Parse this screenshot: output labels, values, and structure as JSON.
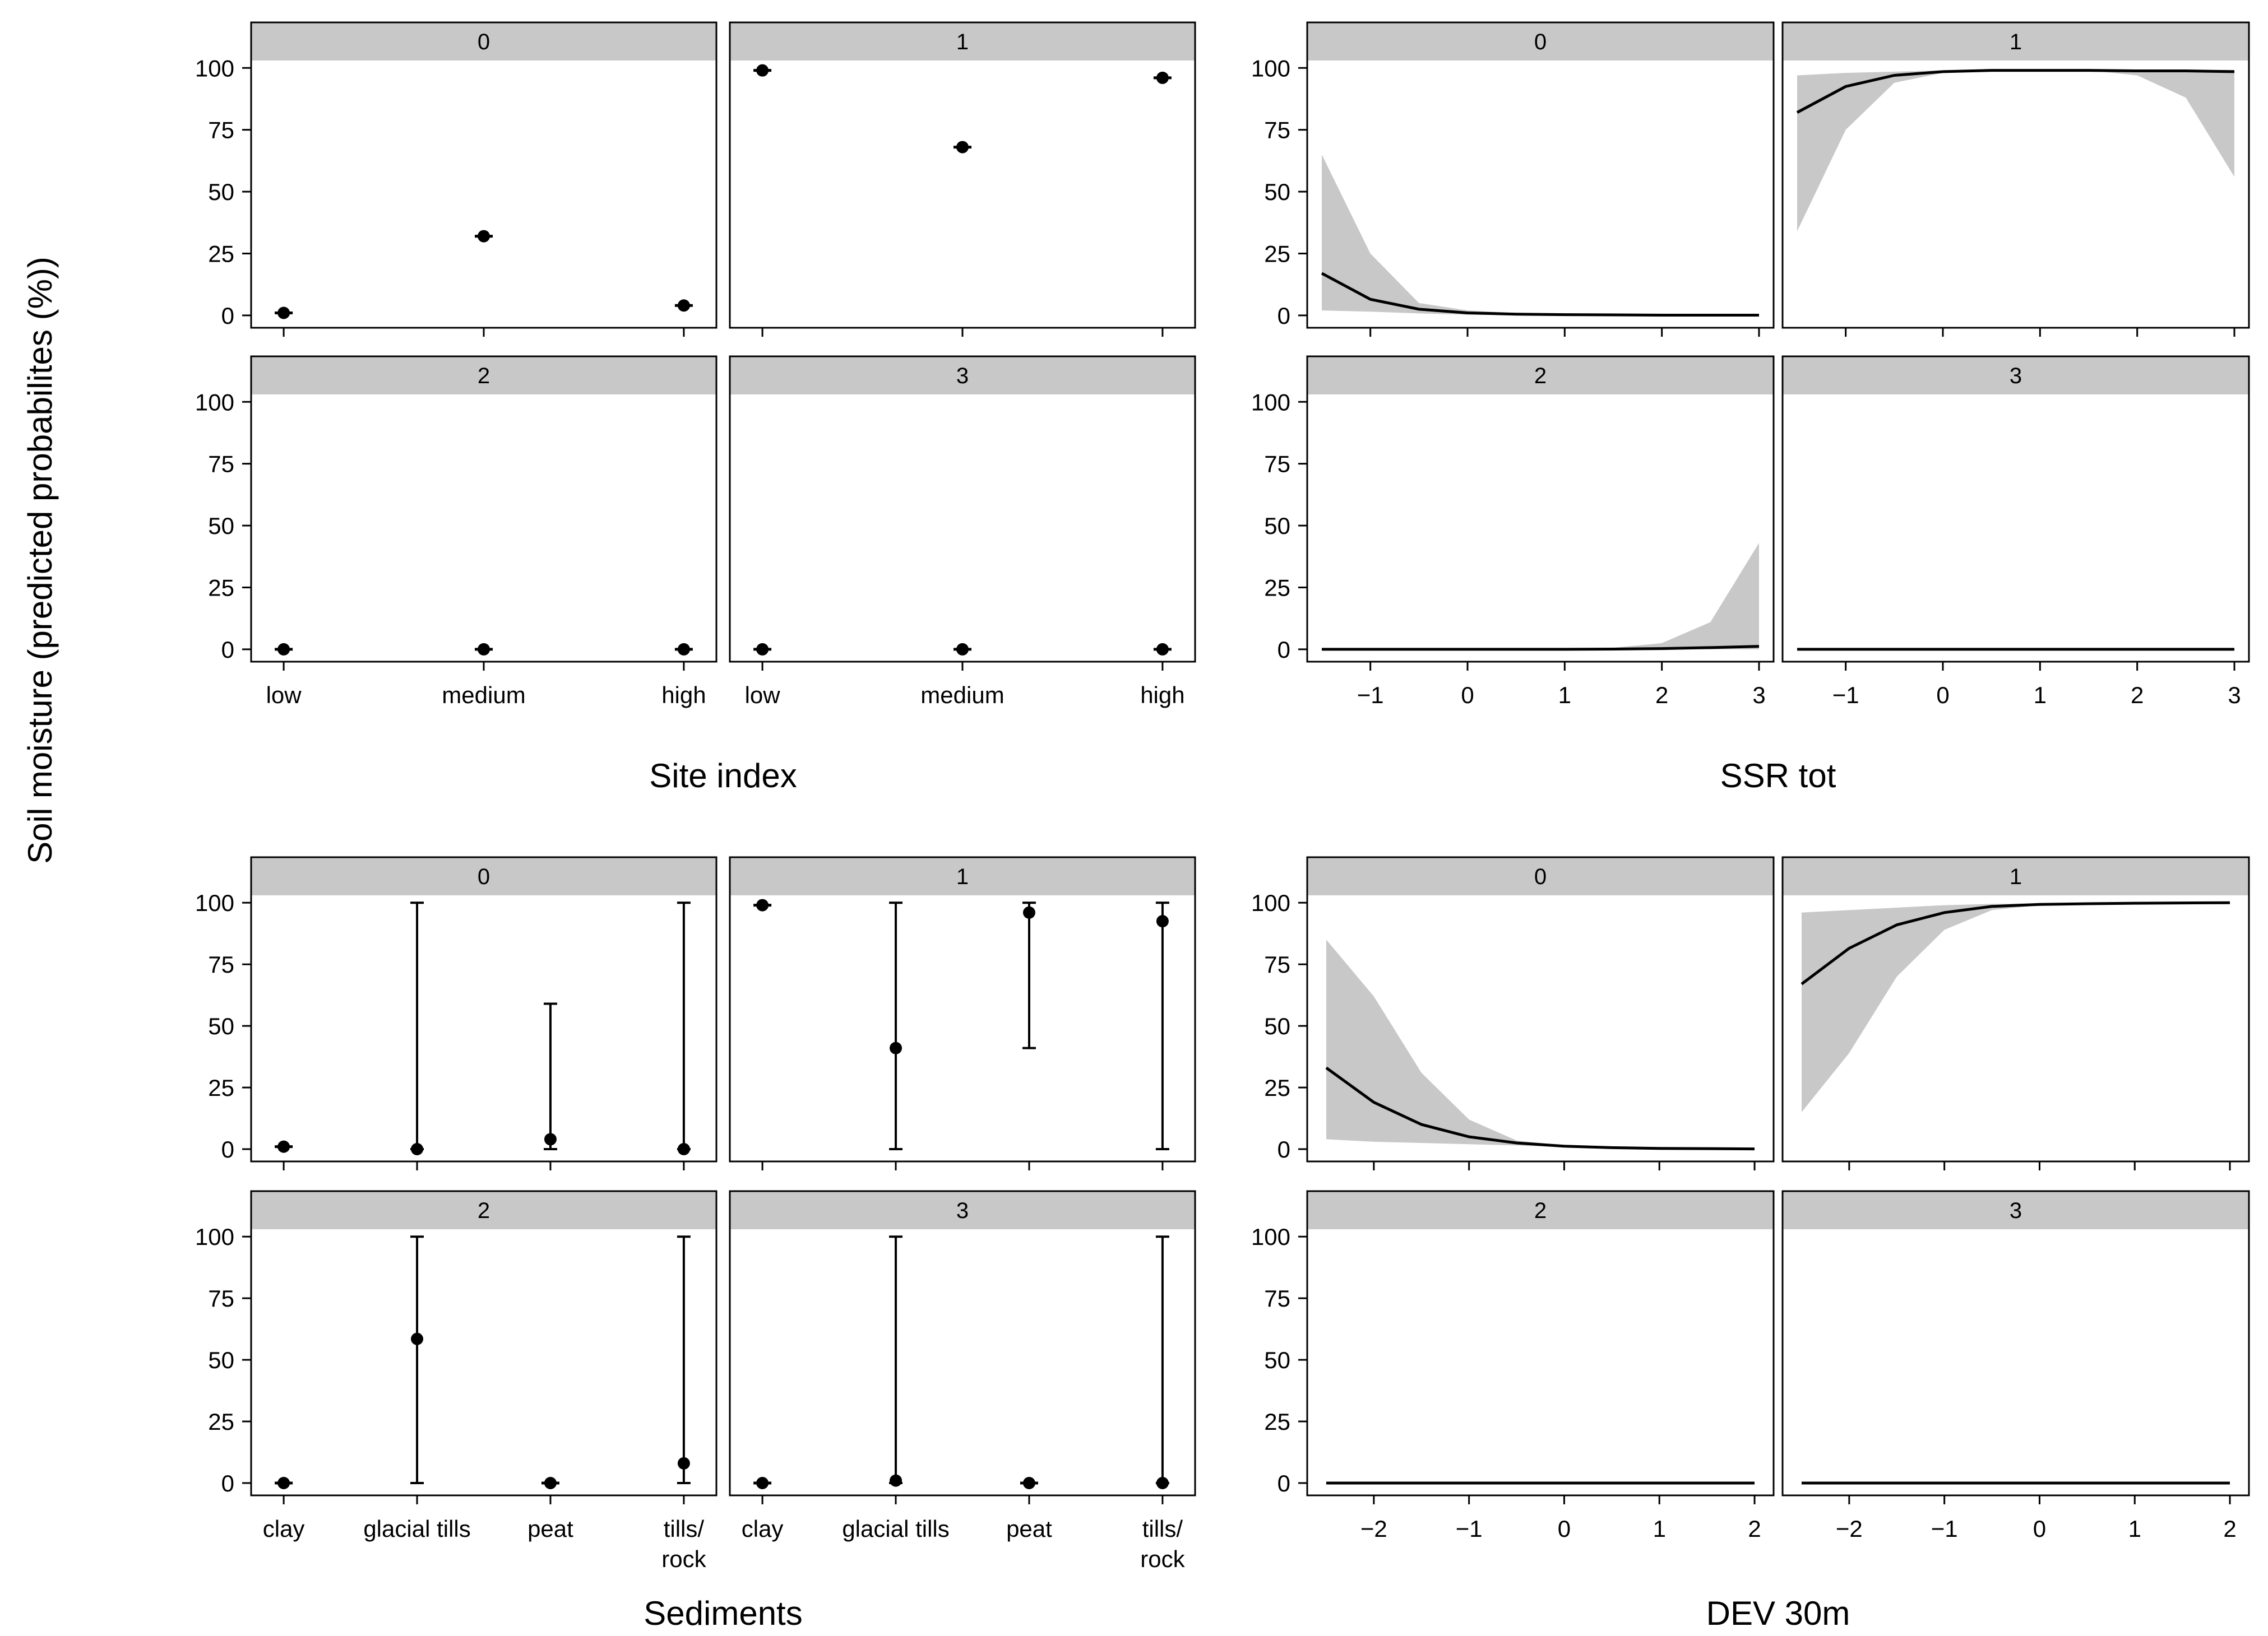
{
  "figure": {
    "ylabel": "Soil moisture (predicted probabilites (%))"
  },
  "colors": {
    "strip": "#c8c8c8",
    "band": "#c8c8c8",
    "line": "#000000",
    "frame": "#000000"
  },
  "chart_data": [
    {
      "id": "site-index",
      "type": "scatter",
      "title": "Site index",
      "xlabel": "Site index",
      "ylabel": "Soil moisture (predicted probabilites (%))",
      "categories": [
        "low",
        "medium",
        "high"
      ],
      "yticks": [
        0,
        25,
        50,
        75,
        100
      ],
      "ylim": [
        -5,
        103
      ],
      "panels": [
        {
          "label": "0",
          "points": [
            {
              "y": 1,
              "lo": 0,
              "hi": 2
            },
            {
              "y": 32,
              "lo": 31,
              "hi": 33
            },
            {
              "y": 4,
              "lo": 3,
              "hi": 5
            }
          ]
        },
        {
          "label": "1",
          "points": [
            {
              "y": 99,
              "lo": 98,
              "hi": 100
            },
            {
              "y": 68,
              "lo": 67,
              "hi": 69
            },
            {
              "y": 96,
              "lo": 95,
              "hi": 97
            }
          ]
        },
        {
          "label": "2",
          "points": [
            {
              "y": 0,
              "lo": 0,
              "hi": 0
            },
            {
              "y": 0,
              "lo": 0,
              "hi": 0
            },
            {
              "y": 0,
              "lo": 0,
              "hi": 0
            }
          ]
        },
        {
          "label": "3",
          "points": [
            {
              "y": 0,
              "lo": 0,
              "hi": 0
            },
            {
              "y": 0,
              "lo": 0,
              "hi": 0
            },
            {
              "y": 0,
              "lo": 0,
              "hi": 0
            }
          ]
        }
      ]
    },
    {
      "id": "ssr-tot",
      "type": "line",
      "title": "SSR tot",
      "xlabel": "SSR tot",
      "ylabel": "Soil moisture (predicted probabilites (%))",
      "x": [
        -1.5,
        -1,
        -0.5,
        0,
        0.5,
        1,
        1.5,
        2,
        2.5,
        3
      ],
      "xticks": [
        -1,
        0,
        1,
        2,
        3
      ],
      "xlim": [
        -1.65,
        3.15
      ],
      "yticks": [
        0,
        25,
        50,
        75,
        100
      ],
      "ylim": [
        -5,
        103
      ],
      "panels": [
        {
          "label": "0",
          "values": [
            17,
            6.5,
            2.5,
            1,
            0.5,
            0.3,
            0.2,
            0.1,
            0.1,
            0.1
          ],
          "lower": [
            2,
            1.5,
            0.8,
            0.3,
            0.1,
            0,
            0,
            0,
            0,
            0
          ],
          "upper": [
            65,
            25,
            5,
            2,
            1,
            0.5,
            0.3,
            0.2,
            0.2,
            0.2
          ]
        },
        {
          "label": "1",
          "values": [
            82,
            92.5,
            97,
            98.5,
            99,
            99,
            99,
            98.8,
            98.8,
            98.5
          ],
          "lower": [
            34,
            75,
            94,
            98,
            98.8,
            99,
            99,
            97,
            88,
            56
          ],
          "upper": [
            97,
            98,
            98.5,
            99,
            99.2,
            99.3,
            99.3,
            99.2,
            99.2,
            99.2
          ]
        },
        {
          "label": "2",
          "values": [
            0,
            0,
            0,
            0,
            0,
            0,
            0.1,
            0.3,
            0.7,
            1.2
          ],
          "lower": [
            0,
            0,
            0,
            0,
            0,
            0,
            0,
            0,
            0,
            0
          ],
          "upper": [
            0,
            0,
            0,
            0,
            0.1,
            0.3,
            0.6,
            2.5,
            11,
            43
          ]
        },
        {
          "label": "3",
          "values": [
            0,
            0,
            0,
            0,
            0,
            0,
            0,
            0,
            0,
            0
          ],
          "lower": [
            0,
            0,
            0,
            0,
            0,
            0,
            0,
            0,
            0,
            0
          ],
          "upper": [
            0,
            0,
            0,
            0,
            0,
            0,
            0,
            0,
            0,
            0
          ]
        }
      ]
    },
    {
      "id": "sediments",
      "type": "scatter",
      "title": "Sediments",
      "xlabel": "Sediments",
      "ylabel": "Soil moisture (predicted probabilites (%))",
      "categories": [
        "clay",
        "glacial tills",
        "peat",
        "tills/\nrock"
      ],
      "yticks": [
        0,
        25,
        50,
        75,
        100
      ],
      "ylim": [
        -5,
        103
      ],
      "panels": [
        {
          "label": "0",
          "points": [
            {
              "y": 1,
              "lo": 1,
              "hi": 1
            },
            {
              "y": 0,
              "lo": 0,
              "hi": 100
            },
            {
              "y": 4,
              "lo": 0,
              "hi": 59
            },
            {
              "y": 0,
              "lo": 0,
              "hi": 100
            }
          ]
        },
        {
          "label": "1",
          "points": [
            {
              "y": 99,
              "lo": 99,
              "hi": 99
            },
            {
              "y": 41,
              "lo": 0,
              "hi": 100
            },
            {
              "y": 96,
              "lo": 41,
              "hi": 100
            },
            {
              "y": 92.5,
              "lo": 0,
              "hi": 100
            }
          ]
        },
        {
          "label": "2",
          "points": [
            {
              "y": 0,
              "lo": 0,
              "hi": 0
            },
            {
              "y": 58.5,
              "lo": 0,
              "hi": 100
            },
            {
              "y": 0,
              "lo": 0,
              "hi": 0
            },
            {
              "y": 8,
              "lo": 0,
              "hi": 100
            }
          ]
        },
        {
          "label": "3",
          "points": [
            {
              "y": 0,
              "lo": 0,
              "hi": 0
            },
            {
              "y": 1,
              "lo": 0,
              "hi": 100
            },
            {
              "y": 0,
              "lo": 0,
              "hi": 0
            },
            {
              "y": 0,
              "lo": 0,
              "hi": 100
            }
          ]
        }
      ]
    },
    {
      "id": "dev-30m",
      "type": "line",
      "title": "DEV 30m",
      "xlabel": "DEV 30m",
      "ylabel": "Soil moisture (predicted probabilites (%))",
      "x": [
        -2.5,
        -2,
        -1.5,
        -1,
        -0.5,
        0,
        0.5,
        1,
        1.5,
        2
      ],
      "xticks": [
        -2,
        -1,
        0,
        1,
        2
      ],
      "xlim": [
        -2.7,
        2.2
      ],
      "yticks": [
        0,
        25,
        50,
        75,
        100
      ],
      "ylim": [
        -5,
        103
      ],
      "panels": [
        {
          "label": "0",
          "values": [
            33,
            19,
            10,
            5,
            2.5,
            1.2,
            0.6,
            0.3,
            0.2,
            0.1
          ],
          "lower": [
            4,
            3,
            2.5,
            2,
            1.5,
            0.8,
            0.3,
            0.2,
            0.1,
            0
          ],
          "upper": [
            85,
            62,
            31,
            12,
            3.5,
            1.5,
            0.8,
            0.5,
            0.3,
            0.2
          ]
        },
        {
          "label": "1",
          "values": [
            67,
            81.5,
            91,
            96,
            98.5,
            99.3,
            99.6,
            99.8,
            99.9,
            100
          ],
          "lower": [
            15,
            39,
            70,
            89,
            97,
            99,
            99.5,
            99.7,
            99.8,
            99.9
          ],
          "upper": [
            96,
            97,
            98,
            99,
            99.5,
            99.8,
            99.9,
            100,
            100,
            100
          ]
        },
        {
          "label": "2",
          "values": [
            0,
            0,
            0,
            0,
            0,
            0,
            0,
            0,
            0,
            0
          ],
          "lower": [
            0,
            0,
            0,
            0,
            0,
            0,
            0,
            0,
            0,
            0
          ],
          "upper": [
            0,
            0,
            0,
            0,
            0,
            0,
            0,
            0,
            0,
            0
          ]
        },
        {
          "label": "3",
          "values": [
            0,
            0,
            0,
            0,
            0,
            0,
            0,
            0,
            0,
            0
          ],
          "lower": [
            0,
            0,
            0,
            0,
            0,
            0,
            0,
            0,
            0,
            0
          ],
          "upper": [
            0,
            0,
            0,
            0,
            0,
            0,
            0,
            0,
            0,
            0
          ]
        }
      ]
    }
  ]
}
